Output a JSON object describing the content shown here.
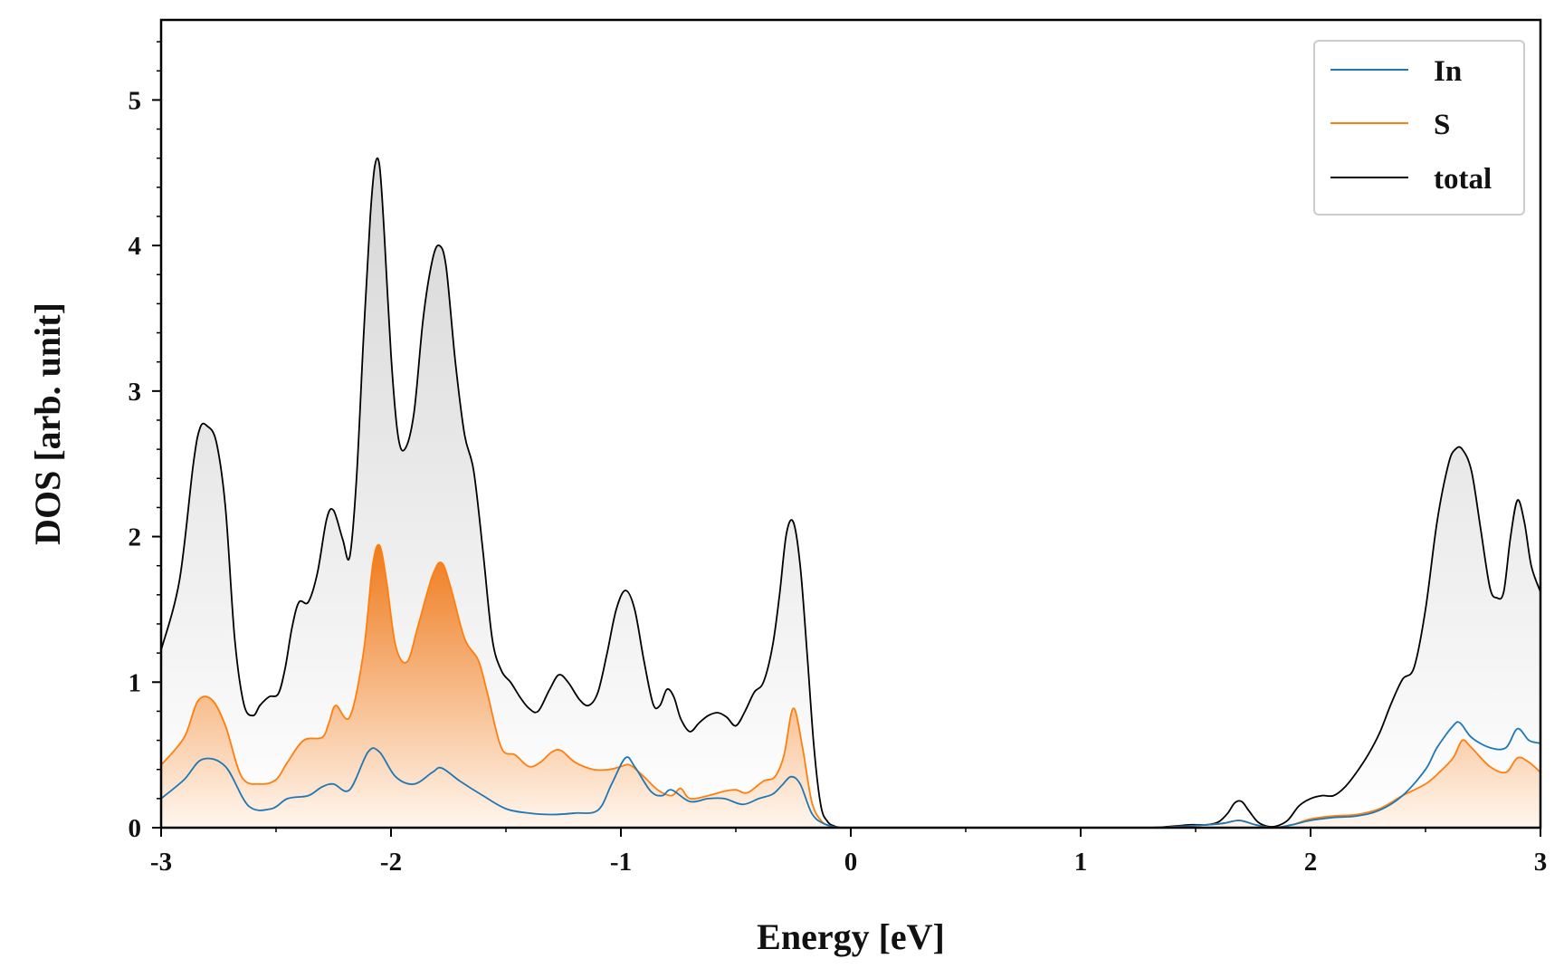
{
  "chart_data": {
    "type": "area",
    "xlabel": "Energy [eV]",
    "ylabel": "DOS [arb. unit]",
    "xlim": [
      -3,
      3
    ],
    "ylim": [
      0,
      5.55
    ],
    "xticks": [
      -3,
      -2,
      -1,
      0,
      1,
      2,
      3
    ],
    "xtick_labels": [
      "-3",
      "-2",
      "-1",
      "0",
      "1",
      "2",
      "3"
    ],
    "yticks": [
      0,
      1,
      2,
      3,
      4,
      5
    ],
    "ytick_labels": [
      "0",
      "1",
      "2",
      "3",
      "4",
      "5"
    ],
    "grid": false,
    "legend_position": "top-right",
    "series": [
      {
        "name": "In",
        "color": "#1f77b4",
        "x": [
          -3.0,
          -2.9,
          -2.82,
          -2.72,
          -2.62,
          -2.52,
          -2.45,
          -2.36,
          -2.3,
          -2.25,
          -2.18,
          -2.1,
          -2.05,
          -1.98,
          -1.9,
          -1.82,
          -1.78,
          -1.7,
          -1.6,
          -1.5,
          -1.4,
          -1.3,
          -1.2,
          -1.1,
          -1.04,
          -0.98,
          -0.94,
          -0.87,
          -0.82,
          -0.78,
          -0.7,
          -0.62,
          -0.55,
          -0.47,
          -0.4,
          -0.34,
          -0.3,
          -0.26,
          -0.22,
          -0.17,
          -0.12,
          -0.05,
          0.0,
          0.5,
          1.0,
          1.3,
          1.45,
          1.55,
          1.62,
          1.69,
          1.76,
          1.84,
          1.92,
          2.0,
          2.1,
          2.2,
          2.3,
          2.4,
          2.5,
          2.55,
          2.62,
          2.65,
          2.7,
          2.78,
          2.85,
          2.9,
          2.95,
          3.0
        ],
        "values": [
          0.2,
          0.33,
          0.47,
          0.42,
          0.15,
          0.13,
          0.2,
          0.22,
          0.28,
          0.3,
          0.26,
          0.52,
          0.52,
          0.35,
          0.3,
          0.38,
          0.41,
          0.32,
          0.22,
          0.13,
          0.1,
          0.09,
          0.1,
          0.12,
          0.3,
          0.48,
          0.42,
          0.25,
          0.22,
          0.26,
          0.18,
          0.2,
          0.2,
          0.16,
          0.2,
          0.23,
          0.29,
          0.35,
          0.3,
          0.1,
          0.03,
          0.0,
          0.0,
          0.0,
          0.0,
          0.0,
          0.01,
          0.02,
          0.03,
          0.05,
          0.02,
          0.0,
          0.02,
          0.05,
          0.07,
          0.08,
          0.12,
          0.22,
          0.4,
          0.55,
          0.7,
          0.72,
          0.62,
          0.55,
          0.55,
          0.68,
          0.6,
          0.58
        ]
      },
      {
        "name": "S",
        "color": "#ff7f0e",
        "x": [
          -3.0,
          -2.9,
          -2.84,
          -2.78,
          -2.72,
          -2.65,
          -2.57,
          -2.5,
          -2.45,
          -2.38,
          -2.3,
          -2.27,
          -2.24,
          -2.18,
          -2.12,
          -2.08,
          -2.05,
          -2.02,
          -1.98,
          -1.93,
          -1.88,
          -1.82,
          -1.78,
          -1.74,
          -1.68,
          -1.62,
          -1.58,
          -1.52,
          -1.46,
          -1.4,
          -1.35,
          -1.3,
          -1.26,
          -1.2,
          -1.12,
          -1.05,
          -1.0,
          -0.96,
          -0.9,
          -0.84,
          -0.78,
          -0.74,
          -0.7,
          -0.62,
          -0.55,
          -0.5,
          -0.45,
          -0.38,
          -0.33,
          -0.29,
          -0.25,
          -0.21,
          -0.17,
          -0.13,
          -0.09,
          -0.05,
          0.0,
          0.5,
          1.0,
          1.3,
          1.45,
          1.55,
          1.62,
          1.69,
          1.76,
          1.84,
          1.92,
          2.0,
          2.1,
          2.2,
          2.3,
          2.4,
          2.5,
          2.56,
          2.62,
          2.66,
          2.7,
          2.78,
          2.85,
          2.9,
          2.95,
          3.0
        ],
        "values": [
          0.43,
          0.62,
          0.87,
          0.88,
          0.7,
          0.35,
          0.3,
          0.33,
          0.45,
          0.6,
          0.62,
          0.72,
          0.84,
          0.76,
          1.2,
          1.8,
          1.94,
          1.7,
          1.25,
          1.14,
          1.4,
          1.73,
          1.82,
          1.65,
          1.3,
          1.15,
          0.92,
          0.55,
          0.5,
          0.42,
          0.45,
          0.52,
          0.53,
          0.45,
          0.4,
          0.4,
          0.42,
          0.43,
          0.35,
          0.26,
          0.22,
          0.27,
          0.2,
          0.22,
          0.25,
          0.26,
          0.24,
          0.32,
          0.35,
          0.5,
          0.82,
          0.55,
          0.18,
          0.05,
          0.01,
          0.0,
          0.0,
          0.0,
          0.0,
          0.0,
          0.01,
          0.02,
          0.03,
          0.05,
          0.02,
          0.0,
          0.02,
          0.06,
          0.08,
          0.09,
          0.13,
          0.22,
          0.3,
          0.38,
          0.48,
          0.6,
          0.55,
          0.42,
          0.38,
          0.48,
          0.45,
          0.38
        ]
      },
      {
        "name": "total",
        "color": "#000000",
        "x": [
          -3.0,
          -2.92,
          -2.86,
          -2.83,
          -2.8,
          -2.76,
          -2.72,
          -2.68,
          -2.64,
          -2.6,
          -2.57,
          -2.53,
          -2.49,
          -2.46,
          -2.43,
          -2.4,
          -2.36,
          -2.32,
          -2.28,
          -2.25,
          -2.21,
          -2.18,
          -2.15,
          -2.12,
          -2.09,
          -2.07,
          -2.05,
          -2.03,
          -2.0,
          -1.97,
          -1.94,
          -1.9,
          -1.86,
          -1.82,
          -1.79,
          -1.76,
          -1.72,
          -1.68,
          -1.64,
          -1.6,
          -1.56,
          -1.52,
          -1.48,
          -1.44,
          -1.4,
          -1.36,
          -1.31,
          -1.27,
          -1.23,
          -1.18,
          -1.14,
          -1.1,
          -1.06,
          -1.02,
          -0.98,
          -0.94,
          -0.9,
          -0.86,
          -0.83,
          -0.8,
          -0.77,
          -0.74,
          -0.7,
          -0.66,
          -0.62,
          -0.58,
          -0.54,
          -0.5,
          -0.46,
          -0.42,
          -0.38,
          -0.34,
          -0.31,
          -0.28,
          -0.25,
          -0.22,
          -0.19,
          -0.16,
          -0.13,
          -0.1,
          -0.07,
          -0.04,
          0.0,
          0.5,
          1.0,
          1.3,
          1.4,
          1.48,
          1.55,
          1.6,
          1.64,
          1.67,
          1.7,
          1.73,
          1.77,
          1.81,
          1.85,
          1.9,
          1.95,
          2.0,
          2.05,
          2.1,
          2.15,
          2.2,
          2.25,
          2.3,
          2.35,
          2.4,
          2.45,
          2.5,
          2.55,
          2.6,
          2.63,
          2.66,
          2.7,
          2.74,
          2.78,
          2.81,
          2.84,
          2.87,
          2.9,
          2.93,
          2.96,
          3.0
        ],
        "values": [
          1.22,
          1.7,
          2.5,
          2.75,
          2.76,
          2.65,
          2.2,
          1.3,
          0.85,
          0.77,
          0.84,
          0.9,
          0.92,
          1.1,
          1.38,
          1.55,
          1.55,
          1.75,
          2.12,
          2.18,
          1.98,
          1.86,
          2.4,
          3.35,
          4.2,
          4.55,
          4.55,
          4.1,
          3.25,
          2.7,
          2.6,
          2.85,
          3.5,
          3.9,
          4.0,
          3.85,
          3.2,
          2.7,
          2.45,
          1.9,
          1.3,
          1.08,
          1.0,
          0.9,
          0.82,
          0.8,
          0.95,
          1.05,
          1.0,
          0.88,
          0.84,
          0.93,
          1.2,
          1.5,
          1.63,
          1.5,
          1.15,
          0.85,
          0.84,
          0.95,
          0.9,
          0.75,
          0.66,
          0.72,
          0.77,
          0.79,
          0.76,
          0.7,
          0.8,
          0.93,
          1.0,
          1.25,
          1.6,
          2.02,
          2.1,
          1.8,
          1.2,
          0.55,
          0.15,
          0.04,
          0.01,
          0.0,
          0.0,
          0.0,
          0.0,
          0.0,
          0.01,
          0.02,
          0.02,
          0.04,
          0.1,
          0.17,
          0.18,
          0.12,
          0.04,
          0.01,
          0.01,
          0.05,
          0.15,
          0.2,
          0.22,
          0.22,
          0.28,
          0.38,
          0.5,
          0.65,
          0.85,
          1.02,
          1.1,
          1.5,
          2.1,
          2.5,
          2.6,
          2.6,
          2.45,
          2.05,
          1.65,
          1.58,
          1.62,
          2.0,
          2.25,
          2.1,
          1.8,
          1.62
        ]
      }
    ]
  }
}
